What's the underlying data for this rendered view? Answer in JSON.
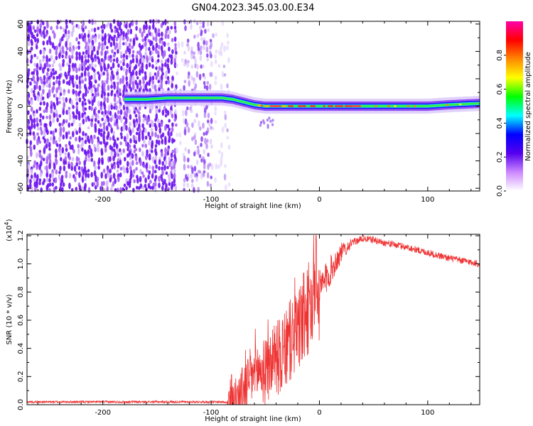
{
  "title": "GN04.2023.345.03.00.E34",
  "chart_data": [
    {
      "type": "heatmap",
      "name": "spectrogram",
      "xlabel": "Height of straight line (km)",
      "ylabel": "Frequency (Hz)",
      "xlim": [
        -270,
        148
      ],
      "ylim": [
        -62,
        62
      ],
      "xticks": [
        -200,
        -100,
        0,
        100
      ],
      "yticks": [
        60,
        40,
        20,
        0,
        -20,
        -40,
        -60
      ],
      "colorbar": {
        "label": "Normalized spectral amplitude",
        "range": [
          0.0,
          1.0
        ],
        "ticks": [
          0.0,
          0.2,
          0.4,
          0.6,
          0.8
        ],
        "tick_labels": [
          "0.0",
          "0.2",
          "0.4",
          "0.6",
          "0.8"
        ],
        "colormap": [
          "#ffffff",
          "#cc88ff",
          "#5500ee",
          "#0000ff",
          "#00ffff",
          "#00ff00",
          "#ffff00",
          "#ff8800",
          "#ff0000",
          "#ff00aa"
        ]
      },
      "noise_regions": [
        {
          "x": [
            -270,
            -133
          ],
          "level": "high"
        },
        {
          "x": [
            -133,
            -125
          ],
          "level": "low"
        },
        {
          "x": [
            -125,
            -100
          ],
          "level": "medium"
        },
        {
          "x": [
            -100,
            -85
          ],
          "level": "low"
        }
      ],
      "signal_track": {
        "x": [
          -180,
          -160,
          -140,
          -120,
          -100,
          -90,
          -80,
          -70,
          -60,
          -50,
          -40,
          -30,
          -20,
          -10,
          0,
          20,
          40,
          60,
          80,
          100,
          120,
          148
        ],
        "freq": [
          5,
          5,
          6,
          6,
          6,
          6,
          5,
          3,
          1,
          0,
          0,
          0,
          0,
          0,
          0,
          0,
          0,
          0,
          0,
          0,
          1,
          2
        ]
      }
    },
    {
      "type": "line",
      "name": "snr",
      "xlabel": "Height of straight line (km)",
      "ylabel": "SNR (10 * v/v)",
      "multiplier": "(x10",
      "multiplier_exp": "4",
      "multiplier_close": ")",
      "xlim": [
        -270,
        148
      ],
      "ylim": [
        0.0,
        1.21
      ],
      "xticks": [
        -200,
        -100,
        0,
        100
      ],
      "yticks": [
        0.0,
        0.2,
        0.4,
        0.6,
        0.8,
        1.0,
        1.2
      ],
      "ytick_labels": [
        "0.0",
        "0.2",
        "0.4",
        "0.6",
        "0.8",
        "1.0",
        "1.2"
      ],
      "color": "#ee3333",
      "series": {
        "x": [
          -270,
          -200,
          -120,
          -85,
          -75,
          -70,
          -65,
          -60,
          -55,
          -50,
          -45,
          -40,
          -35,
          -30,
          -25,
          -20,
          -15,
          -10,
          -5,
          0,
          10,
          20,
          30,
          40,
          50,
          60,
          80,
          100,
          120,
          148
        ],
        "y": [
          0.02,
          0.02,
          0.02,
          0.02,
          0.05,
          0.1,
          0.18,
          0.22,
          0.25,
          0.22,
          0.3,
          0.35,
          0.32,
          0.4,
          0.48,
          0.52,
          0.6,
          0.68,
          0.72,
          0.8,
          0.95,
          1.08,
          1.15,
          1.18,
          1.17,
          1.15,
          1.12,
          1.08,
          1.04,
          1.0
        ]
      }
    }
  ]
}
